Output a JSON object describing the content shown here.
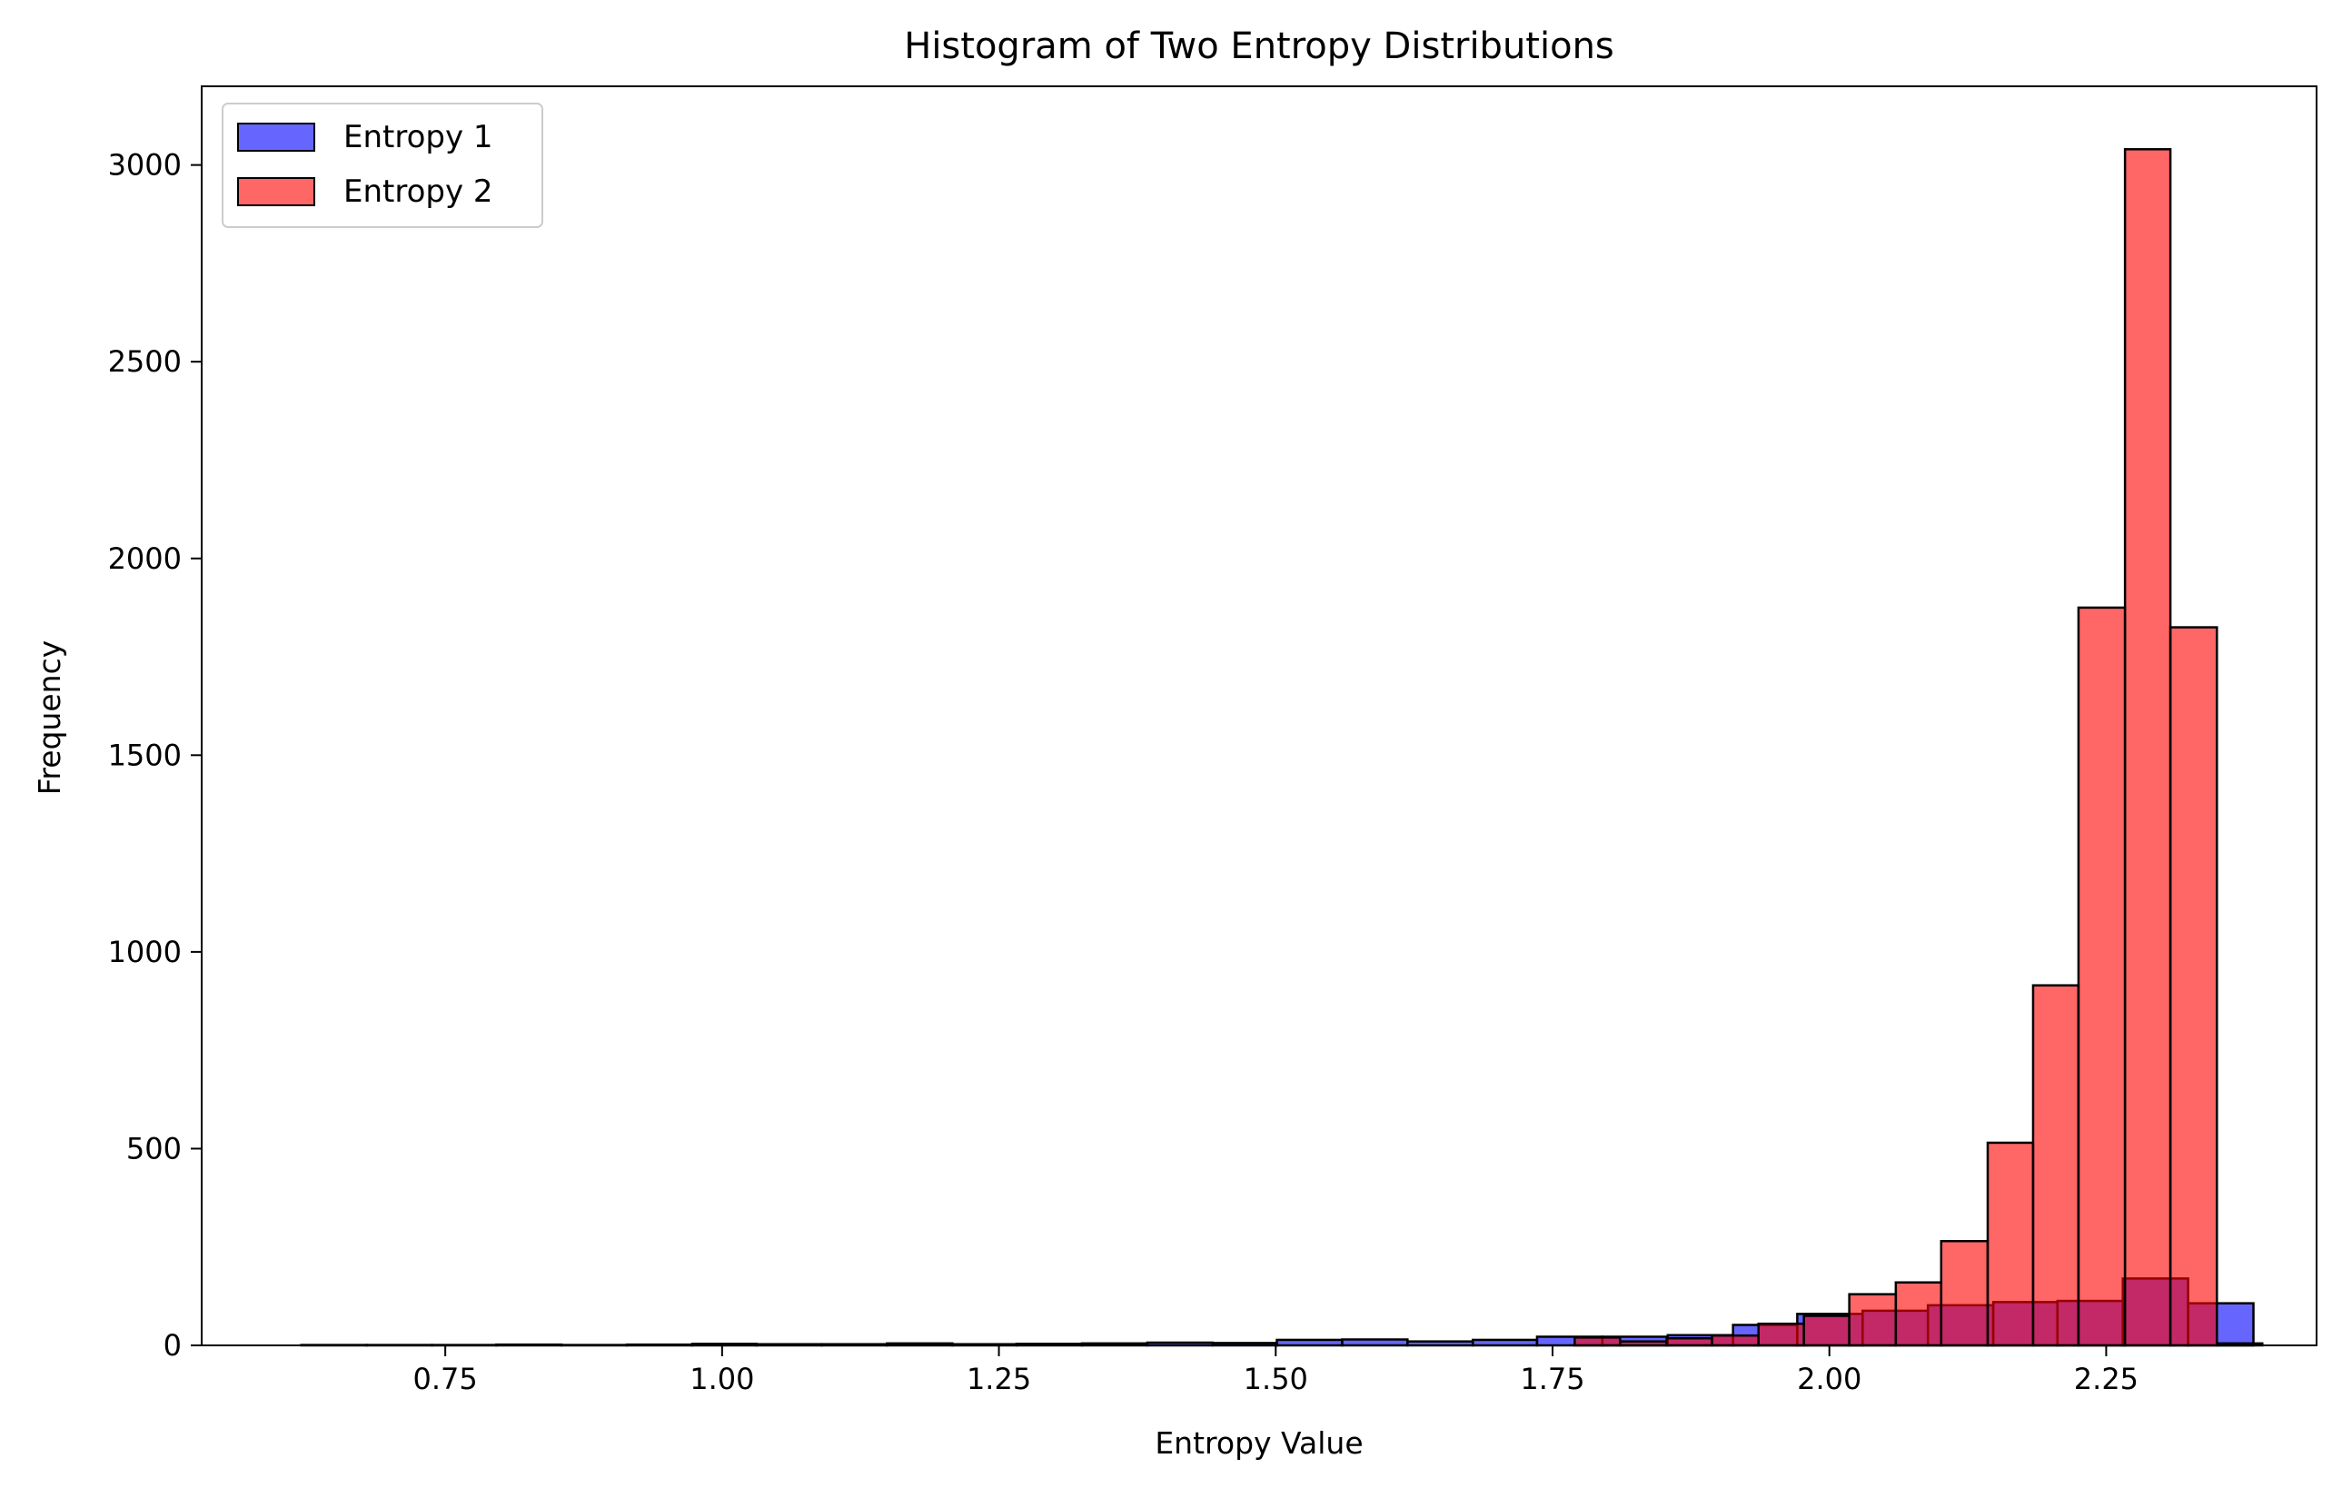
{
  "colors": {
    "entropy1_fill": "#0000ff",
    "entropy2_fill": "#ff0000",
    "edge": "#000000",
    "overlap_edge": "#b00000",
    "background": "#ffffff"
  },
  "chart_data": {
    "type": "bar",
    "subtype": "histogram",
    "title": "Histogram of Two Entropy Distributions",
    "xlabel": "Entropy Value",
    "ylabel": "Frequency",
    "xlim": [
      0.53,
      2.44
    ],
    "ylim": [
      0,
      3200
    ],
    "xticks": [
      "0.75",
      "1.00",
      "1.25",
      "1.50",
      "1.75",
      "2.00",
      "2.25"
    ],
    "yticks": [
      "0",
      "500",
      "1000",
      "1500",
      "2000",
      "2500",
      "3000"
    ],
    "grid": false,
    "legend": "upper left",
    "bar_alpha": 0.6,
    "series": [
      {
        "name": "Entropy 1",
        "color": "#0000ff",
        "bin_edges": [
          0.62,
          0.679,
          0.738,
          0.796,
          0.855,
          0.914,
          0.973,
          1.031,
          1.09,
          1.149,
          1.208,
          1.266,
          1.325,
          1.384,
          1.443,
          1.501,
          1.56,
          1.619,
          1.678,
          1.736,
          1.795,
          1.854,
          1.913,
          1.971,
          2.03,
          2.089,
          2.148,
          2.206,
          2.265,
          2.324,
          2.383
        ],
        "counts": [
          1,
          1,
          1,
          2,
          1,
          2,
          4,
          3,
          3,
          5,
          3,
          4,
          5,
          7,
          6,
          14,
          15,
          10,
          14,
          22,
          22,
          26,
          52,
          80,
          88,
          102,
          110,
          113,
          170,
          107
        ]
      },
      {
        "name": "Entropy 2",
        "color": "#ff0000",
        "bin_edges": [
          1.77,
          1.811,
          1.853,
          1.894,
          1.936,
          1.977,
          2.018,
          2.06,
          2.101,
          2.143,
          2.184,
          2.225,
          2.267,
          2.308,
          2.35,
          2.391
        ],
        "counts": [
          20,
          10,
          18,
          25,
          55,
          75,
          130,
          160,
          265,
          515,
          915,
          1875,
          3040,
          1825,
          5
        ]
      }
    ]
  }
}
